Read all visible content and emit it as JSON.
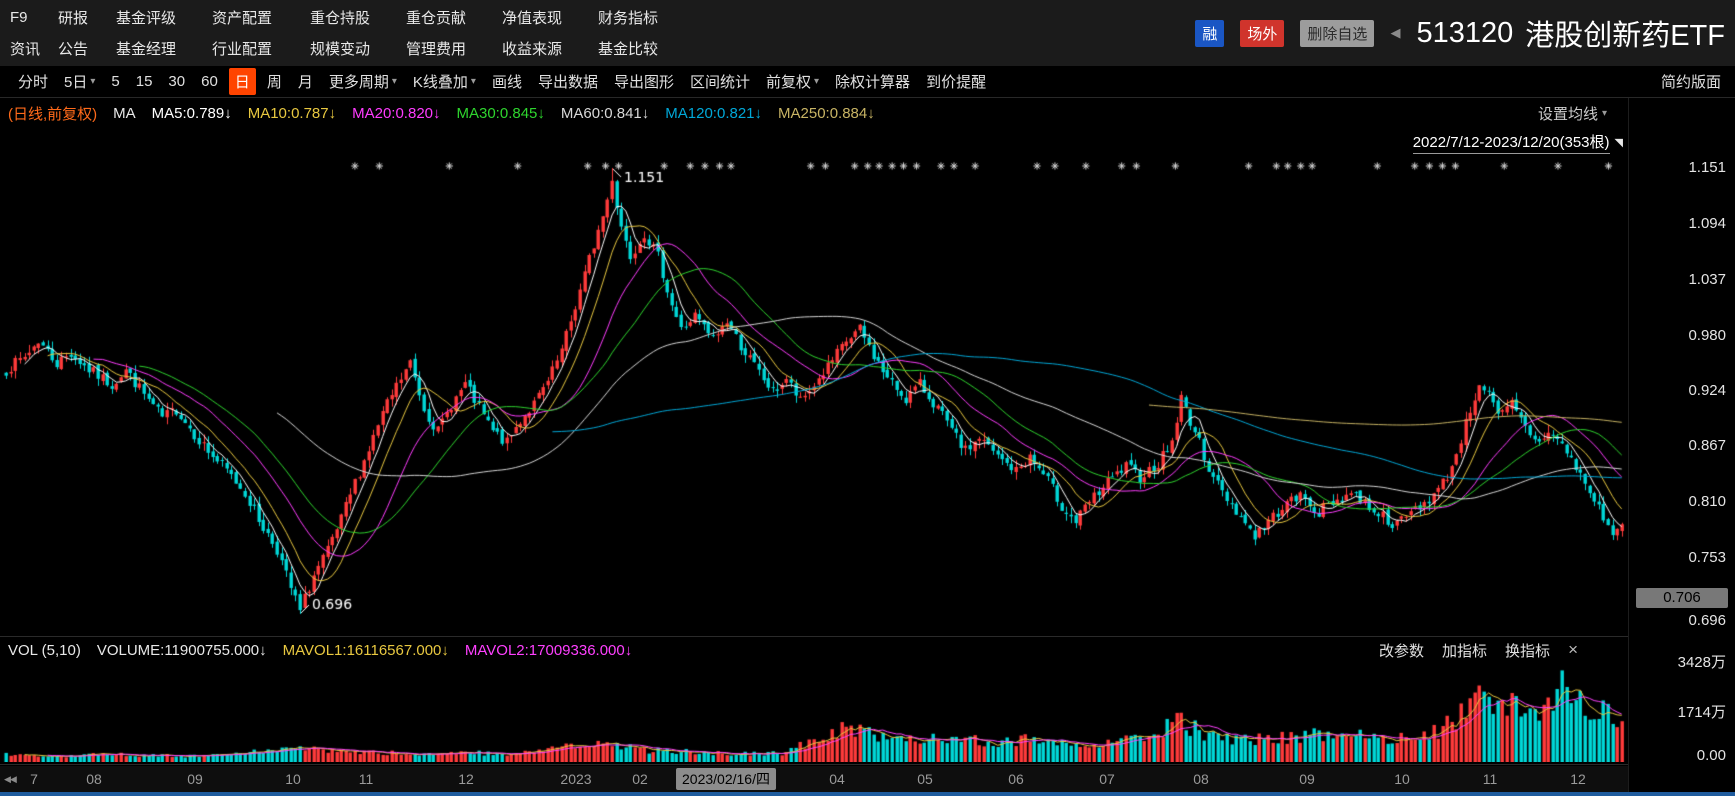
{
  "icons": {
    "caret": "▾",
    "close": "×",
    "collapse": "◀",
    "nav_left": "◀◀",
    "flag": "◥"
  },
  "header": {
    "rows": [
      {
        "items": [
          "F9",
          "研报",
          "基金评级",
          "资产配置",
          "重仓持股",
          "重仓贡献",
          "净值表现",
          "财务指标"
        ]
      },
      {
        "items": [
          "资讯",
          "公告",
          "基金经理",
          "行业配置",
          "规模变动",
          "管理费用",
          "收益来源",
          "基金比较"
        ]
      }
    ],
    "badges": {
      "rong": "融",
      "changwai": "场外",
      "delete_watchlist": "删除自选"
    },
    "collapse_arrow": "◀",
    "symbol_code": "513120",
    "symbol_name": "港股创新药ETF"
  },
  "toolbar": {
    "items": [
      {
        "label": "分时"
      },
      {
        "label": "5日",
        "caret": true
      },
      {
        "label": "5"
      },
      {
        "label": "15"
      },
      {
        "label": "30"
      },
      {
        "label": "60"
      },
      {
        "label": "日",
        "selected": true
      },
      {
        "label": "周"
      },
      {
        "label": "月"
      },
      {
        "label": "更多周期",
        "caret": true
      },
      {
        "label": "K线叠加",
        "caret": true
      },
      {
        "label": "画线"
      },
      {
        "label": "导出数据"
      },
      {
        "label": "导出图形"
      },
      {
        "label": "区间统计"
      },
      {
        "label": "前复权",
        "caret": true
      },
      {
        "label": "除权计算器"
      },
      {
        "label": "到价提醒"
      }
    ],
    "right_label": "简约版面"
  },
  "indicator_bar": {
    "series_label": "(日线,前复权)",
    "ma_prefix": "MA",
    "items": [
      {
        "label": "MA5:0.789↓",
        "color": "#ffffff"
      },
      {
        "label": "MA10:0.787↓",
        "color": "#e8c840"
      },
      {
        "label": "MA20:0.820↓",
        "color": "#ff3cff"
      },
      {
        "label": "MA30:0.845↓",
        "color": "#2ed52e"
      },
      {
        "label": "MA60:0.841↓",
        "color": "#d8d8d8"
      },
      {
        "label": "MA120:0.821↓",
        "color": "#00a8d8"
      },
      {
        "label": "MA250:0.884↓",
        "color": "#c8b464"
      }
    ],
    "settings_label": "设置均线",
    "range_label": "2022/7/12-2023/12/20(353根)"
  },
  "volume_bar": {
    "title": "VOL (5,10)",
    "volume_label": "VOLUME:11900755.000↓",
    "mavol1_label": "MAVOL1:16116567.000↓",
    "mavol2_label": "MAVOL2:17009336.000↓",
    "controls": [
      "改参数",
      "加指标",
      "换指标"
    ],
    "ticks": [
      "3428万",
      "1714万",
      "0.00"
    ]
  },
  "price_axis": {
    "ticks": [
      "1.151",
      "1.094",
      "1.037",
      "0.980",
      "0.924",
      "0.867",
      "0.810",
      "0.753",
      "0.696"
    ],
    "current": "0.706"
  },
  "time_axis": {
    "labels": [
      {
        "t": "7",
        "x": 0.021
      },
      {
        "t": "08",
        "x": 0.058
      },
      {
        "t": "09",
        "x": 0.12
      },
      {
        "t": "10",
        "x": 0.18
      },
      {
        "t": "11",
        "x": 0.225
      },
      {
        "t": "12",
        "x": 0.286
      },
      {
        "t": "2023",
        "x": 0.354
      },
      {
        "t": "02",
        "x": 0.393
      },
      {
        "t": "04",
        "x": 0.514
      },
      {
        "t": "05",
        "x": 0.568
      },
      {
        "t": "06",
        "x": 0.624
      },
      {
        "t": "07",
        "x": 0.68
      },
      {
        "t": "08",
        "x": 0.738
      },
      {
        "t": "09",
        "x": 0.803
      },
      {
        "t": "10",
        "x": 0.861
      },
      {
        "t": "11",
        "x": 0.915
      },
      {
        "t": "12",
        "x": 0.969
      }
    ],
    "hover": {
      "t": "2023/02/16/四",
      "x": 0.446
    }
  },
  "chart_data": {
    "type": "candlestick+volume",
    "symbol": "513120 港股创新药ETF",
    "period": "日线,前复权",
    "date_range": "2022/7/12-2023/12/20",
    "bar_count": 353,
    "price_range": [
      0.68,
      1.17
    ],
    "y_axis_ticks": [
      1.151,
      1.094,
      1.037,
      0.98,
      0.924,
      0.867,
      0.81,
      0.753,
      0.696
    ],
    "high": {
      "index": 132,
      "value": 1.151
    },
    "low": {
      "index": 64,
      "value": 0.696
    },
    "last_volume": 11900755,
    "mavol1": 16116567,
    "mavol2": 17009336,
    "ma_values": {
      "MA5": 0.789,
      "MA10": 0.787,
      "MA20": 0.82,
      "MA30": 0.845,
      "MA60": 0.841,
      "MA120": 0.821,
      "MA250": 0.884
    },
    "ma_windows": [
      5,
      10,
      20,
      30,
      60,
      120,
      250
    ],
    "ma_colors": [
      "#ffffff",
      "#e8c840",
      "#ff3cff",
      "#2ed52e",
      "#d8d8d8",
      "#00a8d8",
      "#c8b464"
    ],
    "up_color": "#ff3b3b",
    "down_color": "#00d8d8",
    "mavol_windows": [
      5,
      10
    ],
    "mavol_colors": [
      "#e8c840",
      "#ff40ff"
    ],
    "volume_max_wan": 3428,
    "event_marker_symbol": "※",
    "event_marker_x": [
      0.218,
      0.233,
      0.276,
      0.318,
      0.361,
      0.372,
      0.38,
      0.408,
      0.424,
      0.433,
      0.442,
      0.449,
      0.498,
      0.507,
      0.525,
      0.533,
      0.54,
      0.548,
      0.555,
      0.563,
      0.578,
      0.586,
      0.599,
      0.637,
      0.648,
      0.667,
      0.689,
      0.698,
      0.722,
      0.767,
      0.784,
      0.791,
      0.799,
      0.806,
      0.846,
      0.869,
      0.878,
      0.886,
      0.894,
      0.924,
      0.957,
      0.988
    ],
    "price_anchors": [
      [
        0,
        0.945
      ],
      [
        4,
        0.958
      ],
      [
        7,
        0.975
      ],
      [
        11,
        0.952
      ],
      [
        14,
        0.962
      ],
      [
        18,
        0.945
      ],
      [
        23,
        0.93
      ],
      [
        26,
        0.945
      ],
      [
        30,
        0.92
      ],
      [
        34,
        0.896
      ],
      [
        37,
        0.905
      ],
      [
        41,
        0.88
      ],
      [
        44,
        0.862
      ],
      [
        48,
        0.842
      ],
      [
        52,
        0.82
      ],
      [
        55,
        0.792
      ],
      [
        59,
        0.762
      ],
      [
        62,
        0.722
      ],
      [
        64,
        0.7
      ],
      [
        67,
        0.735
      ],
      [
        70,
        0.76
      ],
      [
        73,
        0.792
      ],
      [
        76,
        0.83
      ],
      [
        79,
        0.864
      ],
      [
        82,
        0.9
      ],
      [
        85,
        0.928
      ],
      [
        88,
        0.952
      ],
      [
        91,
        0.906
      ],
      [
        94,
        0.882
      ],
      [
        97,
        0.91
      ],
      [
        100,
        0.93
      ],
      [
        103,
        0.906
      ],
      [
        106,
        0.882
      ],
      [
        109,
        0.87
      ],
      [
        112,
        0.894
      ],
      [
        115,
        0.91
      ],
      [
        118,
        0.932
      ],
      [
        121,
        0.964
      ],
      [
        124,
        1.01
      ],
      [
        127,
        1.058
      ],
      [
        130,
        1.102
      ],
      [
        132,
        1.135
      ],
      [
        134,
        1.092
      ],
      [
        136,
        1.062
      ],
      [
        139,
        1.085
      ],
      [
        142,
        1.06
      ],
      [
        145,
        1.012
      ],
      [
        147,
        0.986
      ],
      [
        150,
        1.0
      ],
      [
        154,
        0.976
      ],
      [
        157,
        0.995
      ],
      [
        160,
        0.97
      ],
      [
        164,
        0.942
      ],
      [
        167,
        0.922
      ],
      [
        170,
        0.936
      ],
      [
        173,
        0.912
      ],
      [
        176,
        0.93
      ],
      [
        180,
        0.954
      ],
      [
        183,
        0.974
      ],
      [
        186,
        0.986
      ],
      [
        189,
        0.96
      ],
      [
        192,
        0.936
      ],
      [
        196,
        0.916
      ],
      [
        199,
        0.93
      ],
      [
        203,
        0.906
      ],
      [
        206,
        0.882
      ],
      [
        209,
        0.862
      ],
      [
        212,
        0.876
      ],
      [
        216,
        0.856
      ],
      [
        220,
        0.842
      ],
      [
        223,
        0.856
      ],
      [
        227,
        0.832
      ],
      [
        230,
        0.806
      ],
      [
        233,
        0.79
      ],
      [
        236,
        0.81
      ],
      [
        240,
        0.83
      ],
      [
        244,
        0.846
      ],
      [
        247,
        0.836
      ],
      [
        251,
        0.85
      ],
      [
        254,
        0.872
      ],
      [
        256,
        0.916
      ],
      [
        259,
        0.882
      ],
      [
        262,
        0.846
      ],
      [
        265,
        0.82
      ],
      [
        269,
        0.796
      ],
      [
        272,
        0.776
      ],
      [
        275,
        0.79
      ],
      [
        278,
        0.806
      ],
      [
        282,
        0.816
      ],
      [
        286,
        0.8
      ],
      [
        289,
        0.81
      ],
      [
        293,
        0.82
      ],
      [
        297,
        0.806
      ],
      [
        300,
        0.796
      ],
      [
        303,
        0.786
      ],
      [
        306,
        0.8
      ],
      [
        309,
        0.81
      ],
      [
        312,
        0.822
      ],
      [
        315,
        0.846
      ],
      [
        318,
        0.89
      ],
      [
        321,
        0.932
      ],
      [
        323,
        0.92
      ],
      [
        325,
        0.896
      ],
      [
        328,
        0.91
      ],
      [
        331,
        0.886
      ],
      [
        334,
        0.87
      ],
      [
        336,
        0.884
      ],
      [
        339,
        0.868
      ],
      [
        342,
        0.846
      ],
      [
        345,
        0.82
      ],
      [
        348,
        0.796
      ],
      [
        350,
        0.776
      ],
      [
        352,
        0.786
      ]
    ],
    "volume_anchors": [
      [
        0,
        260
      ],
      [
        10,
        210
      ],
      [
        20,
        300
      ],
      [
        30,
        250
      ],
      [
        40,
        210
      ],
      [
        50,
        300
      ],
      [
        58,
        420
      ],
      [
        64,
        560
      ],
      [
        70,
        400
      ],
      [
        80,
        340
      ],
      [
        90,
        300
      ],
      [
        100,
        340
      ],
      [
        110,
        300
      ],
      [
        118,
        440
      ],
      [
        125,
        600
      ],
      [
        130,
        700
      ],
      [
        134,
        560
      ],
      [
        140,
        420
      ],
      [
        150,
        360
      ],
      [
        160,
        310
      ],
      [
        170,
        330
      ],
      [
        176,
        820
      ],
      [
        180,
        1080
      ],
      [
        186,
        1280
      ],
      [
        190,
        1000
      ],
      [
        196,
        860
      ],
      [
        203,
        940
      ],
      [
        210,
        820
      ],
      [
        216,
        720
      ],
      [
        223,
        840
      ],
      [
        230,
        760
      ],
      [
        236,
        660
      ],
      [
        240,
        800
      ],
      [
        247,
        880
      ],
      [
        251,
        1060
      ],
      [
        255,
        1680
      ],
      [
        257,
        1380
      ],
      [
        262,
        920
      ],
      [
        268,
        760
      ],
      [
        272,
        800
      ],
      [
        278,
        900
      ],
      [
        284,
        1000
      ],
      [
        290,
        860
      ],
      [
        296,
        940
      ],
      [
        302,
        900
      ],
      [
        308,
        1000
      ],
      [
        312,
        1120
      ],
      [
        316,
        1620
      ],
      [
        319,
        2180
      ],
      [
        322,
        2380
      ],
      [
        325,
        1920
      ],
      [
        328,
        2080
      ],
      [
        331,
        1720
      ],
      [
        334,
        1900
      ],
      [
        337,
        2580
      ],
      [
        339,
        3340
      ],
      [
        341,
        2240
      ],
      [
        343,
        2480
      ],
      [
        345,
        2120
      ],
      [
        347,
        1920
      ],
      [
        349,
        1720
      ],
      [
        351,
        1520
      ],
      [
        352,
        1200
      ]
    ]
  }
}
